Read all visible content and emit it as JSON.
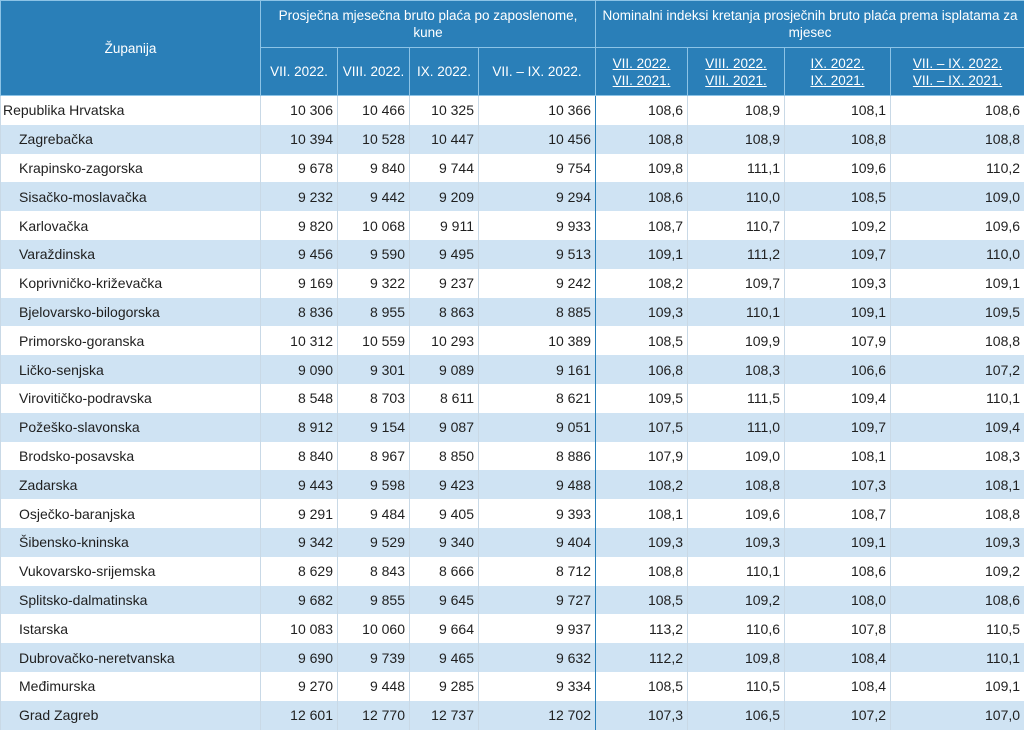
{
  "table": {
    "county_header": "Županija",
    "group_salary_header": "Prosječna mjesečna bruto plaća po zaposlenome, kune",
    "group_index_header": "Nominalni indeksi kretanja prosječnih bruto plaća prema isplatama za mjesec",
    "salary_columns": [
      "VII. 2022.",
      "VIII. 2022.",
      "IX. 2022.",
      "VII. – IX. 2022."
    ],
    "index_columns": [
      {
        "top": "VII. 2022.",
        "bottom": "VII. 2021."
      },
      {
        "top": "VIII. 2022.",
        "bottom": "VIII. 2021."
      },
      {
        "top": "IX. 2022.",
        "bottom": "IX. 2021."
      },
      {
        "top": "VII. – IX. 2022.",
        "bottom": "VII. – IX. 2021."
      }
    ],
    "rows": [
      {
        "name": "Republika Hrvatska",
        "salary": [
          "10 306",
          "10 466",
          "10 325",
          "10 366"
        ],
        "index": [
          "108,6",
          "108,9",
          "108,1",
          "108,6"
        ]
      },
      {
        "name": "Zagrebačka",
        "salary": [
          "10 394",
          "10 528",
          "10 447",
          "10 456"
        ],
        "index": [
          "108,8",
          "108,9",
          "108,8",
          "108,8"
        ]
      },
      {
        "name": "Krapinsko-zagorska",
        "salary": [
          "9 678",
          "9 840",
          "9 744",
          "9 754"
        ],
        "index": [
          "109,8",
          "111,1",
          "109,6",
          "110,2"
        ]
      },
      {
        "name": "Sisačko-moslavačka",
        "salary": [
          "9 232",
          "9 442",
          "9 209",
          "9 294"
        ],
        "index": [
          "108,6",
          "110,0",
          "108,5",
          "109,0"
        ]
      },
      {
        "name": "Karlovačka",
        "salary": [
          "9 820",
          "10 068",
          "9 911",
          "9 933"
        ],
        "index": [
          "108,7",
          "110,7",
          "109,2",
          "109,6"
        ]
      },
      {
        "name": "Varaždinska",
        "salary": [
          "9 456",
          "9 590",
          "9 495",
          "9 513"
        ],
        "index": [
          "109,1",
          "111,2",
          "109,7",
          "110,0"
        ]
      },
      {
        "name": "Koprivničko-križevačka",
        "salary": [
          "9 169",
          "9 322",
          "9 237",
          "9 242"
        ],
        "index": [
          "108,2",
          "109,7",
          "109,3",
          "109,1"
        ]
      },
      {
        "name": "Bjelovarsko-bilogorska",
        "salary": [
          "8 836",
          "8 955",
          "8 863",
          "8 885"
        ],
        "index": [
          "109,3",
          "110,1",
          "109,1",
          "109,5"
        ]
      },
      {
        "name": "Primorsko-goranska",
        "salary": [
          "10 312",
          "10 559",
          "10 293",
          "10 389"
        ],
        "index": [
          "108,5",
          "109,9",
          "107,9",
          "108,8"
        ]
      },
      {
        "name": "Ličko-senjska",
        "salary": [
          "9 090",
          "9 301",
          "9 089",
          "9 161"
        ],
        "index": [
          "106,8",
          "108,3",
          "106,6",
          "107,2"
        ]
      },
      {
        "name": "Virovitičko-podravska",
        "salary": [
          "8 548",
          "8 703",
          "8 611",
          "8 621"
        ],
        "index": [
          "109,5",
          "111,5",
          "109,4",
          "110,1"
        ]
      },
      {
        "name": "Požeško-slavonska",
        "salary": [
          "8 912",
          "9 154",
          "9 087",
          "9 051"
        ],
        "index": [
          "107,5",
          "111,0",
          "109,7",
          "109,4"
        ]
      },
      {
        "name": "Brodsko-posavska",
        "salary": [
          "8 840",
          "8 967",
          "8 850",
          "8 886"
        ],
        "index": [
          "107,9",
          "109,0",
          "108,1",
          "108,3"
        ]
      },
      {
        "name": "Zadarska",
        "salary": [
          "9 443",
          "9 598",
          "9 423",
          "9 488"
        ],
        "index": [
          "108,2",
          "108,8",
          "107,3",
          "108,1"
        ]
      },
      {
        "name": "Osječko-baranjska",
        "salary": [
          "9 291",
          "9 484",
          "9 405",
          "9 393"
        ],
        "index": [
          "108,1",
          "109,6",
          "108,7",
          "108,8"
        ]
      },
      {
        "name": "Šibensko-kninska",
        "salary": [
          "9 342",
          "9 529",
          "9 340",
          "9 404"
        ],
        "index": [
          "109,3",
          "109,3",
          "109,1",
          "109,3"
        ]
      },
      {
        "name": "Vukovarsko-srijemska",
        "salary": [
          "8 629",
          "8 843",
          "8 666",
          "8 712"
        ],
        "index": [
          "108,8",
          "110,1",
          "108,6",
          "109,2"
        ]
      },
      {
        "name": "Splitsko-dalmatinska",
        "salary": [
          "9 682",
          "9 855",
          "9 645",
          "9 727"
        ],
        "index": [
          "108,5",
          "109,2",
          "108,0",
          "108,6"
        ]
      },
      {
        "name": "Istarska",
        "salary": [
          "10 083",
          "10 060",
          "9 664",
          "9 937"
        ],
        "index": [
          "113,2",
          "110,6",
          "107,8",
          "110,5"
        ]
      },
      {
        "name": "Dubrovačko-neretvanska",
        "salary": [
          "9 690",
          "9 739",
          "9 465",
          "9 632"
        ],
        "index": [
          "112,2",
          "109,8",
          "108,4",
          "110,1"
        ]
      },
      {
        "name": "Međimurska",
        "salary": [
          "9 270",
          "9 448",
          "9 285",
          "9 334"
        ],
        "index": [
          "108,5",
          "110,5",
          "108,4",
          "109,1"
        ]
      },
      {
        "name": "Grad Zagreb",
        "salary": [
          "12 601",
          "12 770",
          "12 737",
          "12 702"
        ],
        "index": [
          "107,3",
          "106,5",
          "107,2",
          "107,0"
        ]
      }
    ]
  }
}
